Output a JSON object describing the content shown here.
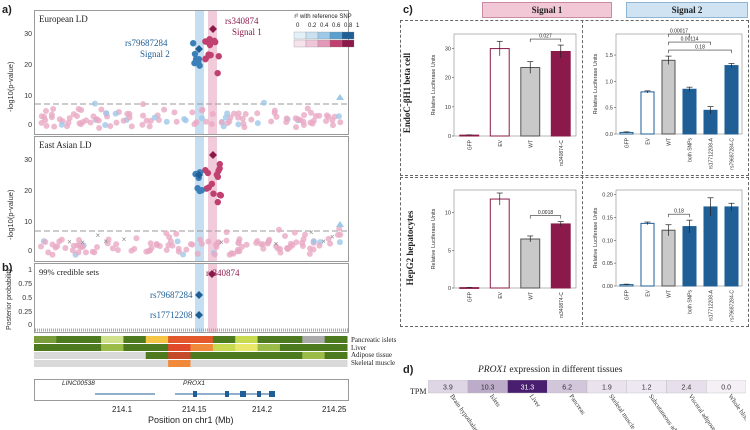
{
  "panel_labels": {
    "a": "a)",
    "b": "b)",
    "c": "c)",
    "d": "d)"
  },
  "colors": {
    "signal1": "#8b1a4a",
    "signal2": "#1f5f96",
    "signal1_light": "#e9a9c3",
    "signal2_light": "#9ec8e8",
    "signal1_header": "#f3c8d6",
    "signal2_header": "#cfe3f2"
  },
  "panel_a": {
    "top_title": "European LD",
    "bottom_title": "East Asian LD",
    "ylabel": "-log10(p-value)",
    "yticks": [
      "0",
      "10",
      "20",
      "30"
    ],
    "snp_signal2": "rs79687284",
    "signal2_label": "Signal  2",
    "snp_signal1": "rs340874",
    "signal1_label": "Signal  1",
    "legend_title": "r² with reference SNP",
    "legend_ticks": [
      "0",
      "0.2",
      "0.4",
      "0.6",
      "0.8",
      "1"
    ]
  },
  "panel_b": {
    "title": "99% credible sets",
    "ylabel": "Posterior probability",
    "yticks": [
      "0",
      "0.25",
      "0.5",
      "0.75",
      "1"
    ],
    "snp1": "rs340874",
    "snp2": "rs79687284",
    "snp3": "rs17712208",
    "tissues": [
      "Pancreatic islets",
      "Liver",
      "Adipose tissue",
      "Skeletal muscle"
    ],
    "genes": [
      "LINC00538",
      "PROX1"
    ],
    "xticks": [
      "214.1",
      "214.15",
      "214.2",
      "214.25"
    ],
    "xlabel": "Position on chr1 (Mb)"
  },
  "panel_c": {
    "signal1_header": "Signal 1",
    "signal2_header": "Signal 2",
    "row1_label": "EndoC-βH1 beta cell",
    "row2_label": "HepG2 hepatocytes",
    "ylabel": "Relative Luciferase Units",
    "s1_categories": [
      "GFP",
      "EV",
      "WT",
      "rs340874-C"
    ],
    "s2_categories": [
      "GFP",
      "EV",
      "WT",
      "both SNPs",
      "rs17712208-A",
      "rs79687284-C"
    ],
    "beta_s1_yticks": [
      "0",
      "10",
      "20",
      "30"
    ],
    "beta_s2_yticks": [
      "0.0",
      "0.5",
      "1.0",
      "1.5"
    ],
    "hep_s1_yticks": [
      "0",
      "5",
      "10"
    ],
    "hep_s2_yticks": [
      "0.00",
      "0.05",
      "0.10",
      "0.15",
      "0.20"
    ],
    "beta_s1_p": [
      "0.027"
    ],
    "beta_s2_p": [
      "0.18",
      "0.00114",
      "0.00017"
    ],
    "hep_s1_p": [
      "0.0018"
    ],
    "hep_s2_p": [
      "0.18"
    ]
  },
  "chart_data": [
    {
      "type": "bar",
      "title": "EndoC-βH1 beta cell, Signal 1",
      "categories": [
        "GFP",
        "EV",
        "WT",
        "rs340874-C"
      ],
      "values": [
        0.3,
        30,
        23.5,
        29
      ],
      "errors": [
        0.1,
        2.5,
        2.0,
        2.2
      ],
      "ylim": [
        0,
        35
      ],
      "ylabel": "Relative Luciferase Units",
      "styles": [
        "none",
        "open-signal1",
        "grey",
        "signal1"
      ],
      "annotations": [
        {
          "from": 2,
          "to": 3,
          "text": "0.027"
        }
      ]
    },
    {
      "type": "bar",
      "title": "EndoC-βH1 beta cell, Signal 2",
      "categories": [
        "GFP",
        "EV",
        "WT",
        "both SNPs",
        "rs17712208-A",
        "rs79687284-C"
      ],
      "values": [
        0.03,
        0.8,
        1.4,
        0.85,
        0.45,
        1.3
      ],
      "errors": [
        0.01,
        0.02,
        0.08,
        0.04,
        0.07,
        0.04
      ],
      "ylim": [
        0,
        1.9
      ],
      "ylabel": "Relative Luciferase Units",
      "styles": [
        "none",
        "open-signal2",
        "grey",
        "signal2",
        "signal2",
        "signal2"
      ],
      "annotations": [
        {
          "from": 2,
          "to": 5,
          "text": "0.18"
        },
        {
          "from": 2,
          "to": 4,
          "text": "0.00114"
        },
        {
          "from": 2,
          "to": 3,
          "text": "0.00017"
        }
      ]
    },
    {
      "type": "bar",
      "title": "HepG2 hepatocytes, Signal 1",
      "categories": [
        "GFP",
        "EV",
        "WT",
        "rs340874-C"
      ],
      "values": [
        0.05,
        11.8,
        6.5,
        8.5
      ],
      "errors": [
        0.02,
        0.8,
        0.4,
        0.3
      ],
      "ylim": [
        0,
        13
      ],
      "ylabel": "Relative Luciferase Units",
      "styles": [
        "none",
        "open-signal1",
        "grey",
        "signal1"
      ],
      "annotations": [
        {
          "from": 2,
          "to": 3,
          "text": "0.0018"
        }
      ]
    },
    {
      "type": "bar",
      "title": "HepG2 hepatocytes, Signal 2",
      "categories": [
        "GFP",
        "EV",
        "WT",
        "both SNPs",
        "rs17712208-A",
        "rs79687284-C"
      ],
      "values": [
        0.003,
        0.137,
        0.122,
        0.13,
        0.173,
        0.173
      ],
      "errors": [
        0.001,
        0.003,
        0.012,
        0.014,
        0.02,
        0.008
      ],
      "ylim": [
        0,
        0.21
      ],
      "ylabel": "Relative Luciferase Units",
      "styles": [
        "none",
        "open-signal2",
        "grey",
        "signal2",
        "signal2",
        "signal2"
      ],
      "annotations": [
        {
          "from": 2,
          "to": 3,
          "text": "0.18"
        }
      ]
    },
    {
      "type": "heatmap",
      "title": "PROX1 expression in different tissues",
      "row_label": "TPM",
      "categories": [
        "Brain hypothalamus",
        "Islets",
        "Liver",
        "Pancreas",
        "Skeletal muscle",
        "Subcutaneous adipose",
        "Visceral adipose",
        "Whole blood"
      ],
      "values": [
        3.9,
        10.3,
        31.3,
        6.2,
        1.9,
        1.2,
        2.4,
        0.0
      ]
    }
  ],
  "panel_d": {
    "title_gene": "PROX1",
    "title_rest": " expression in different tissues",
    "row_label": "TPM",
    "values_text": [
      "3.9",
      "10.3",
      "31.3",
      "6.2",
      "1.9",
      "1.2",
      "2.4",
      "0.0"
    ],
    "tissues": [
      "Brain hypothalamus",
      "Islets",
      "Liver",
      "Pancreas",
      "Skeletal muscle",
      "Subcutaneous adipose",
      "Visceral adipose",
      "Whole blood"
    ]
  }
}
